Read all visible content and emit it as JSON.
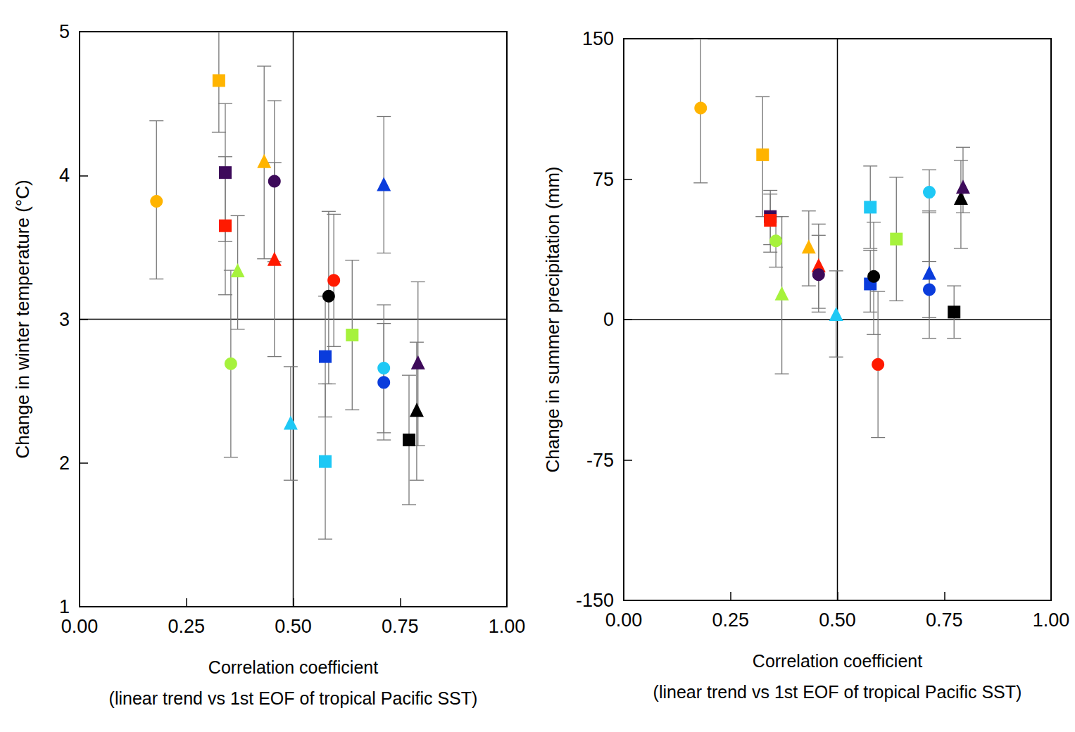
{
  "chart_data": [
    {
      "type": "scatter",
      "xlabel": "Correlation coefficient\n(linear trend vs 1st EOF of tropical Pacific SST)",
      "ylabel": "Change in winter temperature (°C)",
      "xlim": [
        0,
        1
      ],
      "xticks": [
        {
          "value": 0,
          "label": "0.00"
        },
        {
          "value": 0.25,
          "label": "0.25"
        },
        {
          "value": 0.5,
          "label": "0.50"
        },
        {
          "value": 0.75,
          "label": "0.75"
        },
        {
          "value": 1,
          "label": "1.00"
        }
      ],
      "ylim": [
        1,
        5
      ],
      "yticks": [
        1,
        2,
        3,
        4,
        5
      ],
      "ref_lines": {
        "x": 0.5,
        "y": 3
      },
      "series": [
        {
          "color": "#ffb400",
          "marker": "circle",
          "x": [
            0.18
          ],
          "values": [
            3.82
          ],
          "error_low": [
            3.28
          ],
          "error_high": [
            4.38
          ]
        },
        {
          "color": "#ffb400",
          "marker": "square",
          "x": [
            0.326
          ],
          "values": [
            4.66
          ],
          "error_low": [
            4.3
          ],
          "error_high": [
            5.05
          ]
        },
        {
          "color": "#3d0a5a",
          "marker": "square",
          "x": [
            0.341
          ],
          "values": [
            4.02
          ],
          "error_low": [
            3.54
          ],
          "error_high": [
            4.5
          ]
        },
        {
          "color": "#ff1a00",
          "marker": "square",
          "x": [
            0.341
          ],
          "values": [
            3.65
          ],
          "error_low": [
            3.17
          ],
          "error_high": [
            4.13
          ]
        },
        {
          "color": "#a6f23c",
          "marker": "triangle",
          "x": [
            0.37
          ],
          "values": [
            3.34
          ],
          "error_low": [
            2.93
          ],
          "error_high": [
            3.72
          ]
        },
        {
          "color": "#a6f23c",
          "marker": "circle",
          "x": [
            0.354
          ],
          "values": [
            2.69
          ],
          "error_low": [
            2.04
          ],
          "error_high": [
            3.34
          ]
        },
        {
          "color": "#ffb400",
          "marker": "triangle",
          "x": [
            0.432
          ],
          "values": [
            4.1
          ],
          "error_low": [
            3.42
          ],
          "error_high": [
            4.76
          ]
        },
        {
          "color": "#3d0a5a",
          "marker": "circle",
          "x": [
            0.456
          ],
          "values": [
            3.96
          ],
          "error_low": [
            3.4
          ],
          "error_high": [
            4.52
          ]
        },
        {
          "color": "#ff1a00",
          "marker": "triangle",
          "x": [
            0.456
          ],
          "values": [
            3.42
          ],
          "error_low": [
            2.74
          ],
          "error_high": [
            4.09
          ]
        },
        {
          "color": "#1ec8f5",
          "marker": "triangle",
          "x": [
            0.494
          ],
          "values": [
            2.28
          ],
          "error_low": [
            1.88
          ],
          "error_high": [
            2.67
          ]
        },
        {
          "color": "#000000",
          "marker": "circle",
          "x": [
            0.583
          ],
          "values": [
            3.16
          ],
          "error_low": [
            2.55
          ],
          "error_high": [
            3.75
          ]
        },
        {
          "color": "#ff1a00",
          "marker": "circle",
          "x": [
            0.595
          ],
          "values": [
            3.27
          ],
          "error_low": [
            2.81
          ],
          "error_high": [
            3.73
          ]
        },
        {
          "color": "#0a3cdc",
          "marker": "square",
          "x": [
            0.575
          ],
          "values": [
            2.74
          ],
          "error_low": [
            2.32
          ],
          "error_high": [
            3.16
          ]
        },
        {
          "color": "#1ec8f5",
          "marker": "square",
          "x": [
            0.575
          ],
          "values": [
            2.01
          ],
          "error_low": [
            1.47
          ],
          "error_high": [
            2.55
          ]
        },
        {
          "color": "#a6f23c",
          "marker": "square",
          "x": [
            0.638
          ],
          "values": [
            2.89
          ],
          "error_low": [
            2.37
          ],
          "error_high": [
            3.41
          ]
        },
        {
          "color": "#0a3cdc",
          "marker": "triangle",
          "x": [
            0.712
          ],
          "values": [
            3.94
          ],
          "error_low": [
            3.46
          ],
          "error_high": [
            4.41
          ]
        },
        {
          "color": "#1ec8f5",
          "marker": "circle",
          "x": [
            0.712
          ],
          "values": [
            2.66
          ],
          "error_low": [
            2.21
          ],
          "error_high": [
            3.1
          ]
        },
        {
          "color": "#0a3cdc",
          "marker": "circle",
          "x": [
            0.712
          ],
          "values": [
            2.56
          ],
          "error_low": [
            2.16
          ],
          "error_high": [
            2.97
          ]
        },
        {
          "color": "#000000",
          "marker": "square",
          "x": [
            0.771
          ],
          "values": [
            2.16
          ],
          "error_low": [
            1.71
          ],
          "error_high": [
            2.61
          ]
        },
        {
          "color": "#000000",
          "marker": "triangle",
          "x": [
            0.789
          ],
          "values": [
            2.37
          ],
          "error_low": [
            1.88
          ],
          "error_high": [
            2.84
          ]
        },
        {
          "color": "#3d0a5a",
          "marker": "triangle",
          "x": [
            0.792
          ],
          "values": [
            2.7
          ],
          "error_low": [
            2.12
          ],
          "error_high": [
            3.26
          ]
        }
      ]
    },
    {
      "type": "scatter",
      "xlabel": "Correlation coefficient\n(linear trend vs 1st EOF of tropical Pacific SST)",
      "ylabel": "Change in summer precipitation (mm)",
      "xlim": [
        0,
        1
      ],
      "xticks": [
        {
          "value": 0,
          "label": "0.00"
        },
        {
          "value": 0.25,
          "label": "0.25"
        },
        {
          "value": 0.5,
          "label": "0.50"
        },
        {
          "value": 0.75,
          "label": "0.75"
        },
        {
          "value": 1,
          "label": "1.00"
        }
      ],
      "ylim": [
        -150,
        150
      ],
      "yticks": [
        -150,
        -75,
        0,
        75,
        150
      ],
      "ref_lines": {
        "x": 0.5,
        "y": 0
      },
      "series": [
        {
          "color": "#ffb400",
          "marker": "circle",
          "x": [
            0.18
          ],
          "values": [
            113
          ],
          "error_low": [
            73
          ],
          "error_high": [
            150
          ]
        },
        {
          "color": "#ffb400",
          "marker": "square",
          "x": [
            0.325
          ],
          "values": [
            88
          ],
          "error_low": [
            55
          ],
          "error_high": [
            119
          ]
        },
        {
          "color": "#3d0a5a",
          "marker": "square",
          "x": [
            0.343
          ],
          "values": [
            55
          ],
          "error_low": [
            40
          ],
          "error_high": [
            67
          ]
        },
        {
          "color": "#ff1a00",
          "marker": "square",
          "x": [
            0.343
          ],
          "values": [
            53
          ],
          "error_low": [
            36
          ],
          "error_high": [
            69
          ]
        },
        {
          "color": "#a6f23c",
          "marker": "circle",
          "x": [
            0.356
          ],
          "values": [
            42
          ],
          "error_low": [
            28
          ],
          "error_high": [
            55
          ]
        },
        {
          "color": "#a6f23c",
          "marker": "triangle",
          "x": [
            0.37
          ],
          "values": [
            14
          ],
          "error_low": [
            -29
          ],
          "error_high": [
            55
          ]
        },
        {
          "color": "#ffb400",
          "marker": "triangle",
          "x": [
            0.433
          ],
          "values": [
            39
          ],
          "error_low": [
            18
          ],
          "error_high": [
            58
          ]
        },
        {
          "color": "#ff1a00",
          "marker": "triangle",
          "x": [
            0.456
          ],
          "values": [
            29
          ],
          "error_low": [
            6
          ],
          "error_high": [
            51
          ]
        },
        {
          "color": "#3d0a5a",
          "marker": "circle",
          "x": [
            0.456
          ],
          "values": [
            24
          ],
          "error_low": [
            4
          ],
          "error_high": [
            45
          ]
        },
        {
          "color": "#1ec8f5",
          "marker": "triangle",
          "x": [
            0.497
          ],
          "values": [
            3
          ],
          "error_low": [
            -20
          ],
          "error_high": [
            26
          ]
        },
        {
          "color": "#1ec8f5",
          "marker": "square",
          "x": [
            0.577
          ],
          "values": [
            60
          ],
          "error_low": [
            38
          ],
          "error_high": [
            82
          ]
        },
        {
          "color": "#0a3cdc",
          "marker": "square",
          "x": [
            0.577
          ],
          "values": [
            19
          ],
          "error_low": [
            4
          ],
          "error_high": [
            37
          ]
        },
        {
          "color": "#000000",
          "marker": "circle",
          "x": [
            0.585
          ],
          "values": [
            23
          ],
          "error_low": [
            -8
          ],
          "error_high": [
            52
          ]
        },
        {
          "color": "#ff1a00",
          "marker": "circle",
          "x": [
            0.595
          ],
          "values": [
            -24
          ],
          "error_low": [
            -63
          ],
          "error_high": [
            15
          ]
        },
        {
          "color": "#a6f23c",
          "marker": "square",
          "x": [
            0.638
          ],
          "values": [
            43
          ],
          "error_low": [
            10
          ],
          "error_high": [
            76
          ]
        },
        {
          "color": "#1ec8f5",
          "marker": "circle",
          "x": [
            0.715
          ],
          "values": [
            68
          ],
          "error_low": [
            31
          ],
          "error_high": [
            80
          ]
        },
        {
          "color": "#0a3cdc",
          "marker": "triangle",
          "x": [
            0.715
          ],
          "values": [
            25
          ],
          "error_low": [
            1
          ],
          "error_high": [
            57
          ]
        },
        {
          "color": "#0a3cdc",
          "marker": "circle",
          "x": [
            0.715
          ],
          "values": [
            16
          ],
          "error_low": [
            -10
          ],
          "error_high": [
            58
          ]
        },
        {
          "color": "#000000",
          "marker": "square",
          "x": [
            0.773
          ],
          "values": [
            4
          ],
          "error_low": [
            -10
          ],
          "error_high": [
            18
          ]
        },
        {
          "color": "#000000",
          "marker": "triangle",
          "x": [
            0.789
          ],
          "values": [
            65
          ],
          "error_low": [
            38
          ],
          "error_high": [
            85
          ]
        },
        {
          "color": "#3d0a5a",
          "marker": "triangle",
          "x": [
            0.794
          ],
          "values": [
            71
          ],
          "error_low": [
            57
          ],
          "error_high": [
            92
          ]
        }
      ]
    }
  ]
}
